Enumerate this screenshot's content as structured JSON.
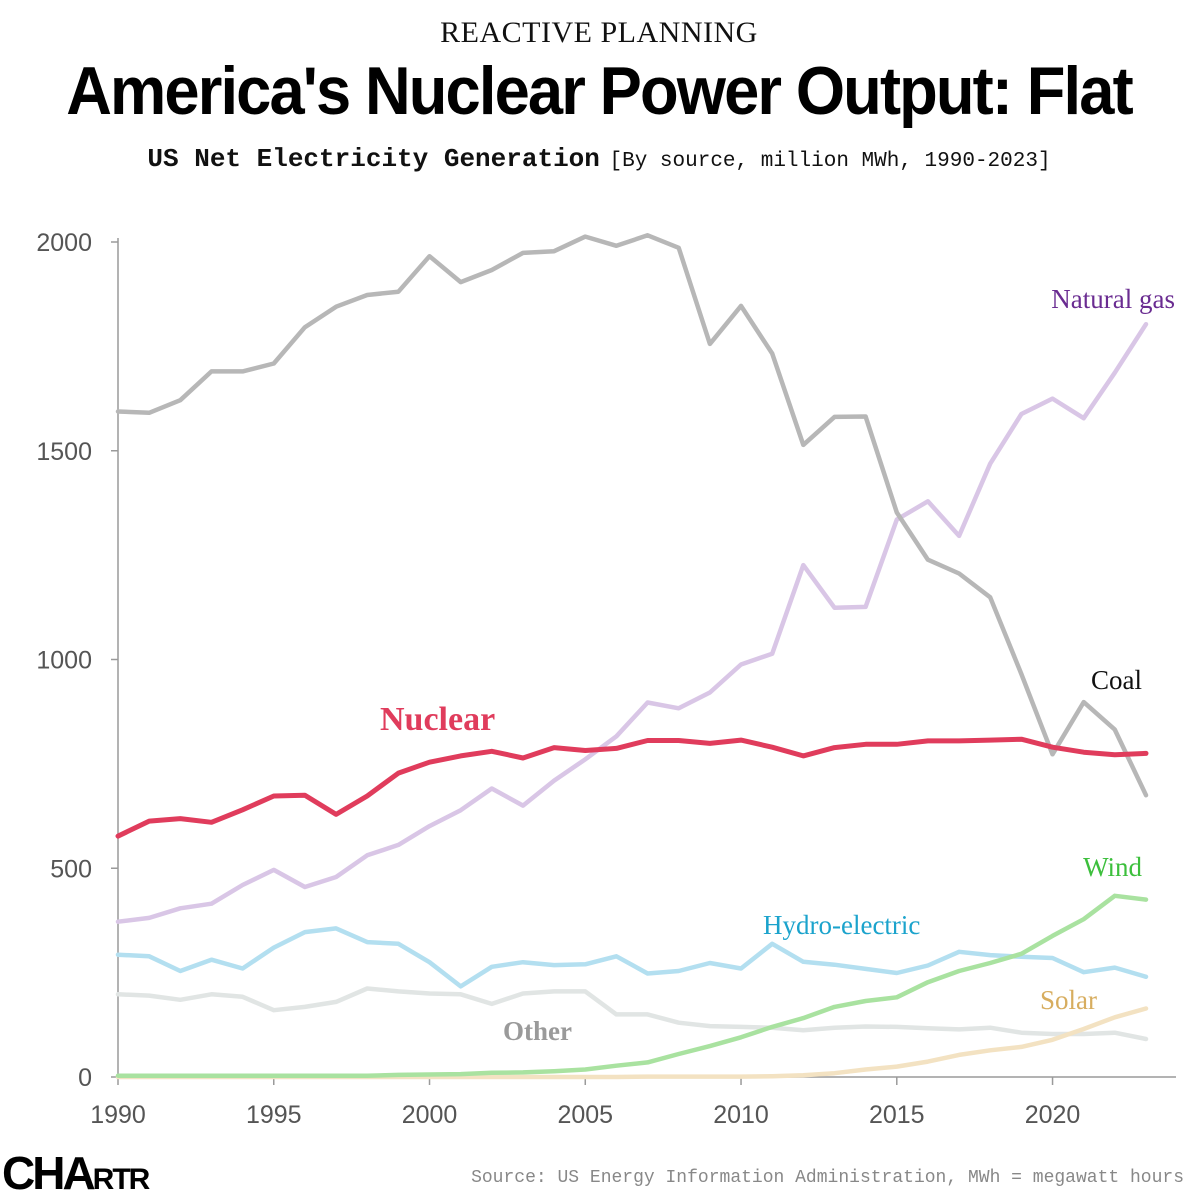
{
  "header": {
    "kicker": "REACTIVE PLANNING",
    "title": "America's Nuclear Power Output: Flat",
    "subtitle": "US Net Electricity Generation",
    "subtitle_note": "[By source, million MWh, 1990-2023]"
  },
  "footer": {
    "logo_big": "CHA",
    "logo_small": "RTR",
    "source": "Source: US Energy Information Administration, MWh = megawatt hours"
  },
  "chart_data": {
    "type": "line",
    "x": [
      1990,
      1991,
      1992,
      1993,
      1994,
      1995,
      1996,
      1997,
      1998,
      1999,
      2000,
      2001,
      2002,
      2003,
      2004,
      2005,
      2006,
      2007,
      2008,
      2009,
      2010,
      2011,
      2012,
      2013,
      2014,
      2015,
      2016,
      2017,
      2018,
      2019,
      2020,
      2021,
      2022,
      2023
    ],
    "xticks": [
      1990,
      1995,
      2000,
      2005,
      2010,
      2015,
      2020
    ],
    "yticks": [
      0,
      500,
      1000,
      1500,
      2000
    ],
    "xlim": [
      1990,
      2023
    ],
    "ylim": [
      0,
      2000
    ],
    "grid": false,
    "series": [
      {
        "name": "Coal",
        "color": "#b7b7b7",
        "label_color": "#111111",
        "values": [
          1594,
          1591,
          1621,
          1690,
          1690,
          1709,
          1796,
          1845,
          1873,
          1881,
          1966,
          1904,
          1933,
          1974,
          1978,
          2013,
          1991,
          2016,
          1986,
          1756,
          1847,
          1733,
          1514,
          1581,
          1582,
          1352,
          1239,
          1206,
          1149,
          965,
          773,
          898,
          832,
          675
        ]
      },
      {
        "name": "Natural gas",
        "color": "#d9c6e6",
        "label_color": "#6a2c91",
        "values": [
          372,
          381,
          404,
          415,
          460,
          496,
          455,
          479,
          531,
          556,
          601,
          639,
          691,
          650,
          710,
          761,
          816,
          897,
          883,
          921,
          988,
          1014,
          1226,
          1124,
          1126,
          1335,
          1379,
          1296,
          1469,
          1588,
          1625,
          1578,
          1687,
          1803
        ]
      },
      {
        "name": "Nuclear",
        "color": "#e03c5c",
        "label_color": "#e03c5c",
        "values": [
          577,
          613,
          619,
          610,
          640,
          673,
          675,
          629,
          673,
          728,
          754,
          769,
          780,
          764,
          789,
          782,
          787,
          806,
          806,
          799,
          807,
          790,
          769,
          789,
          797,
          797,
          805,
          805,
          807,
          809,
          790,
          778,
          772,
          775
        ]
      },
      {
        "name": "Wind",
        "color": "#a9e2a0",
        "label_color": "#3cbf3c",
        "values": [
          3,
          3,
          3,
          3,
          3,
          3,
          3,
          3,
          3,
          5,
          6,
          7,
          10,
          11,
          14,
          18,
          27,
          35,
          55,
          74,
          95,
          120,
          141,
          168,
          182,
          191,
          227,
          254,
          273,
          295,
          338,
          378,
          434,
          425
        ]
      },
      {
        "name": "Hydro-electric",
        "color": "#b3dff0",
        "label_color": "#1ba3cc",
        "values": [
          293,
          289,
          254,
          281,
          260,
          310,
          347,
          356,
          323,
          319,
          275,
          217,
          264,
          275,
          268,
          270,
          289,
          248,
          254,
          273,
          260,
          319,
          276,
          269,
          259,
          249,
          267,
          300,
          292,
          288,
          285,
          251,
          262,
          240
        ]
      },
      {
        "name": "Other",
        "color": "#e1e5e4",
        "label_color": "#9a9a9a",
        "values": [
          198,
          195,
          185,
          198,
          192,
          160,
          168,
          180,
          212,
          205,
          200,
          198,
          175,
          200,
          205,
          205,
          150,
          150,
          130,
          122,
          120,
          118,
          112,
          118,
          121,
          120,
          117,
          114,
          118,
          106,
          103,
          103,
          106,
          91
        ]
      },
      {
        "name": "Solar",
        "color": "#f3e2c2",
        "label_color": "#d7ad5f",
        "values": [
          0,
          0,
          0,
          0,
          0,
          0,
          0,
          0,
          0,
          0,
          0,
          0,
          0,
          0,
          0,
          0,
          0,
          1,
          1,
          1,
          1,
          2,
          4,
          9,
          18,
          25,
          37,
          53,
          64,
          72,
          89,
          115,
          143,
          164
        ]
      }
    ]
  }
}
